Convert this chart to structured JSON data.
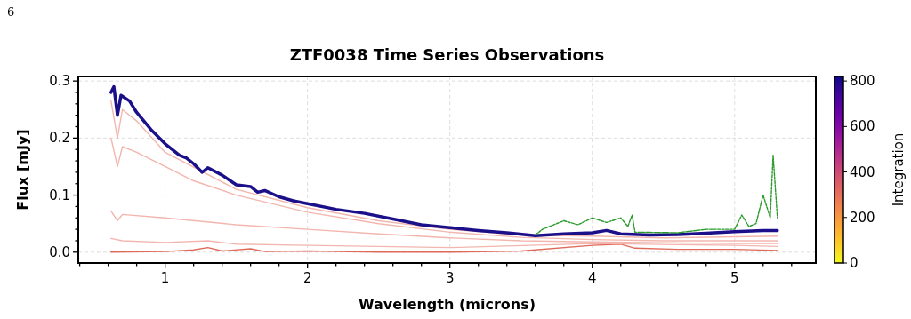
{
  "chart_data": {
    "type": "line",
    "title": "ZTF0038 Time Series Observations",
    "xlabel": "Wavelength (microns)",
    "ylabel": "Flux [mJy]",
    "clabel": "Integration",
    "clim": [
      0,
      820
    ],
    "cticks": [
      0,
      200,
      400,
      600,
      800
    ],
    "annotations": [
      "6"
    ],
    "grid": true,
    "xlim": [
      0.39,
      5.57
    ],
    "ylim": [
      -0.019,
      0.308
    ],
    "xticks": [
      {
        "value": 0.4,
        "label": null
      },
      {
        "value": 0.6,
        "label": null
      },
      {
        "value": 0.8,
        "label": null
      },
      1,
      {
        "value": 1.2,
        "label": null
      },
      {
        "value": 1.4,
        "label": null
      },
      {
        "value": 1.6,
        "label": null
      },
      {
        "value": 1.8,
        "label": null
      },
      2,
      {
        "value": 2.2,
        "label": null
      },
      {
        "value": 2.4,
        "label": null
      },
      {
        "value": 2.6,
        "label": null
      },
      {
        "value": 2.8,
        "label": null
      },
      3,
      {
        "value": 3.2,
        "label": null
      },
      {
        "value": 3.4,
        "label": null
      },
      {
        "value": 3.6,
        "label": null
      },
      {
        "value": 3.8,
        "label": null
      },
      4,
      {
        "value": 4.2,
        "label": null
      },
      {
        "value": 4.4,
        "label": null
      },
      {
        "value": 4.6,
        "label": null
      },
      {
        "value": 4.8,
        "label": null
      },
      5,
      {
        "value": 5.2,
        "label": null
      },
      {
        "value": 5.4,
        "label": null
      }
    ],
    "yticks": [
      {
        "value": 0,
        "label": "0.0"
      },
      {
        "value": 0.02,
        "label": null
      },
      {
        "value": 0.04,
        "label": null
      },
      {
        "value": 0.06,
        "label": null
      },
      {
        "value": 0.08,
        "label": null
      },
      {
        "value": 0.1,
        "label": "0.1"
      },
      {
        "value": 0.12,
        "label": null
      },
      {
        "value": 0.14,
        "label": null
      },
      {
        "value": 0.16,
        "label": null
      },
      {
        "value": 0.18,
        "label": null
      },
      {
        "value": 0.2,
        "label": "0.2"
      },
      {
        "value": 0.22,
        "label": null
      },
      {
        "value": 0.24,
        "label": null
      },
      {
        "value": 0.26,
        "label": null
      },
      {
        "value": 0.28,
        "label": null
      },
      {
        "value": 0.3,
        "label": "0.3"
      }
    ],
    "series": [
      {
        "color": "#e06a5a",
        "x": [
          0.62,
          1.0,
          1.2,
          1.3,
          1.4,
          1.6,
          1.7,
          2.0,
          2.5,
          3.0,
          3.5,
          4.0,
          4.2,
          4.3,
          4.6,
          5.0,
          5.3
        ],
        "values": [
          0.0,
          0.001,
          0.004,
          0.008,
          0.002,
          0.006,
          0.001,
          0.002,
          0.0,
          0.0,
          0.002,
          0.012,
          0.014,
          0.007,
          0.005,
          0.005,
          0.003
        ]
      },
      {
        "color": "#f2b6ae",
        "x": [
          0.62,
          0.7,
          1.0,
          1.3,
          1.5,
          2.0,
          3.0,
          4.0,
          5.0,
          5.3
        ],
        "values": [
          0.024,
          0.02,
          0.017,
          0.02,
          0.014,
          0.012,
          0.008,
          0.015,
          0.012,
          0.01
        ]
      },
      {
        "color": "#f2b6ae",
        "x": [
          0.62,
          0.665,
          0.7,
          1.0,
          1.5,
          2.0,
          2.5,
          3.0,
          3.5,
          4.0,
          5.0,
          5.3
        ],
        "values": [
          0.072,
          0.055,
          0.066,
          0.06,
          0.048,
          0.04,
          0.032,
          0.025,
          0.02,
          0.018,
          0.015,
          0.015
        ]
      },
      {
        "color": "#f2b6ae",
        "x": [
          0.62,
          0.665,
          0.7,
          0.8,
          1.0,
          1.2,
          1.5,
          2.0,
          2.5,
          3.0,
          3.5,
          4.0,
          4.5,
          5.0,
          5.3
        ],
        "values": [
          0.2,
          0.15,
          0.185,
          0.175,
          0.15,
          0.125,
          0.1,
          0.07,
          0.05,
          0.035,
          0.026,
          0.022,
          0.02,
          0.02,
          0.02
        ]
      },
      {
        "color": "#f2b6ae",
        "x": [
          0.62,
          0.665,
          0.7,
          0.8,
          1.0,
          1.5,
          2.0,
          2.5,
          3.0,
          3.5,
          4.0,
          4.5,
          5.0,
          5.3
        ],
        "values": [
          0.265,
          0.2,
          0.25,
          0.23,
          0.175,
          0.11,
          0.078,
          0.055,
          0.04,
          0.03,
          0.028,
          0.025,
          0.027,
          0.028
        ]
      },
      {
        "color": "#1c0f8a",
        "x": [
          0.62,
          0.64,
          0.665,
          0.69,
          0.75,
          0.8,
          0.9,
          1.0,
          1.1,
          1.15,
          1.2,
          1.26,
          1.3,
          1.4,
          1.5,
          1.6,
          1.65,
          1.7,
          1.8,
          1.9,
          2.0,
          2.2,
          2.4,
          2.6,
          2.8,
          3.0,
          3.2,
          3.4,
          3.6,
          3.8,
          4.0,
          4.1,
          4.2,
          4.4,
          4.6,
          4.8,
          5.0,
          5.2,
          5.3
        ],
        "values": [
          0.28,
          0.29,
          0.24,
          0.275,
          0.265,
          0.245,
          0.215,
          0.19,
          0.17,
          0.165,
          0.155,
          0.14,
          0.148,
          0.135,
          0.118,
          0.115,
          0.105,
          0.108,
          0.097,
          0.09,
          0.085,
          0.075,
          0.068,
          0.058,
          0.048,
          0.043,
          0.038,
          0.034,
          0.029,
          0.032,
          0.034,
          0.038,
          0.032,
          0.03,
          0.031,
          0.033,
          0.036,
          0.038,
          0.038
        ]
      },
      {
        "color": "#2a9a2a",
        "line_style": "dashed",
        "x": [
          3.6,
          3.65,
          3.8,
          3.9,
          4.0,
          4.1,
          4.2,
          4.25,
          4.28,
          4.3,
          4.6,
          4.8,
          5.0,
          5.05,
          5.1,
          5.15,
          5.2,
          5.25,
          5.27,
          5.3
        ],
        "values": [
          0.03,
          0.04,
          0.055,
          0.048,
          0.06,
          0.052,
          0.06,
          0.045,
          0.065,
          0.035,
          0.034,
          0.04,
          0.04,
          0.065,
          0.045,
          0.05,
          0.1,
          0.06,
          0.17,
          0.06
        ]
      }
    ]
  }
}
